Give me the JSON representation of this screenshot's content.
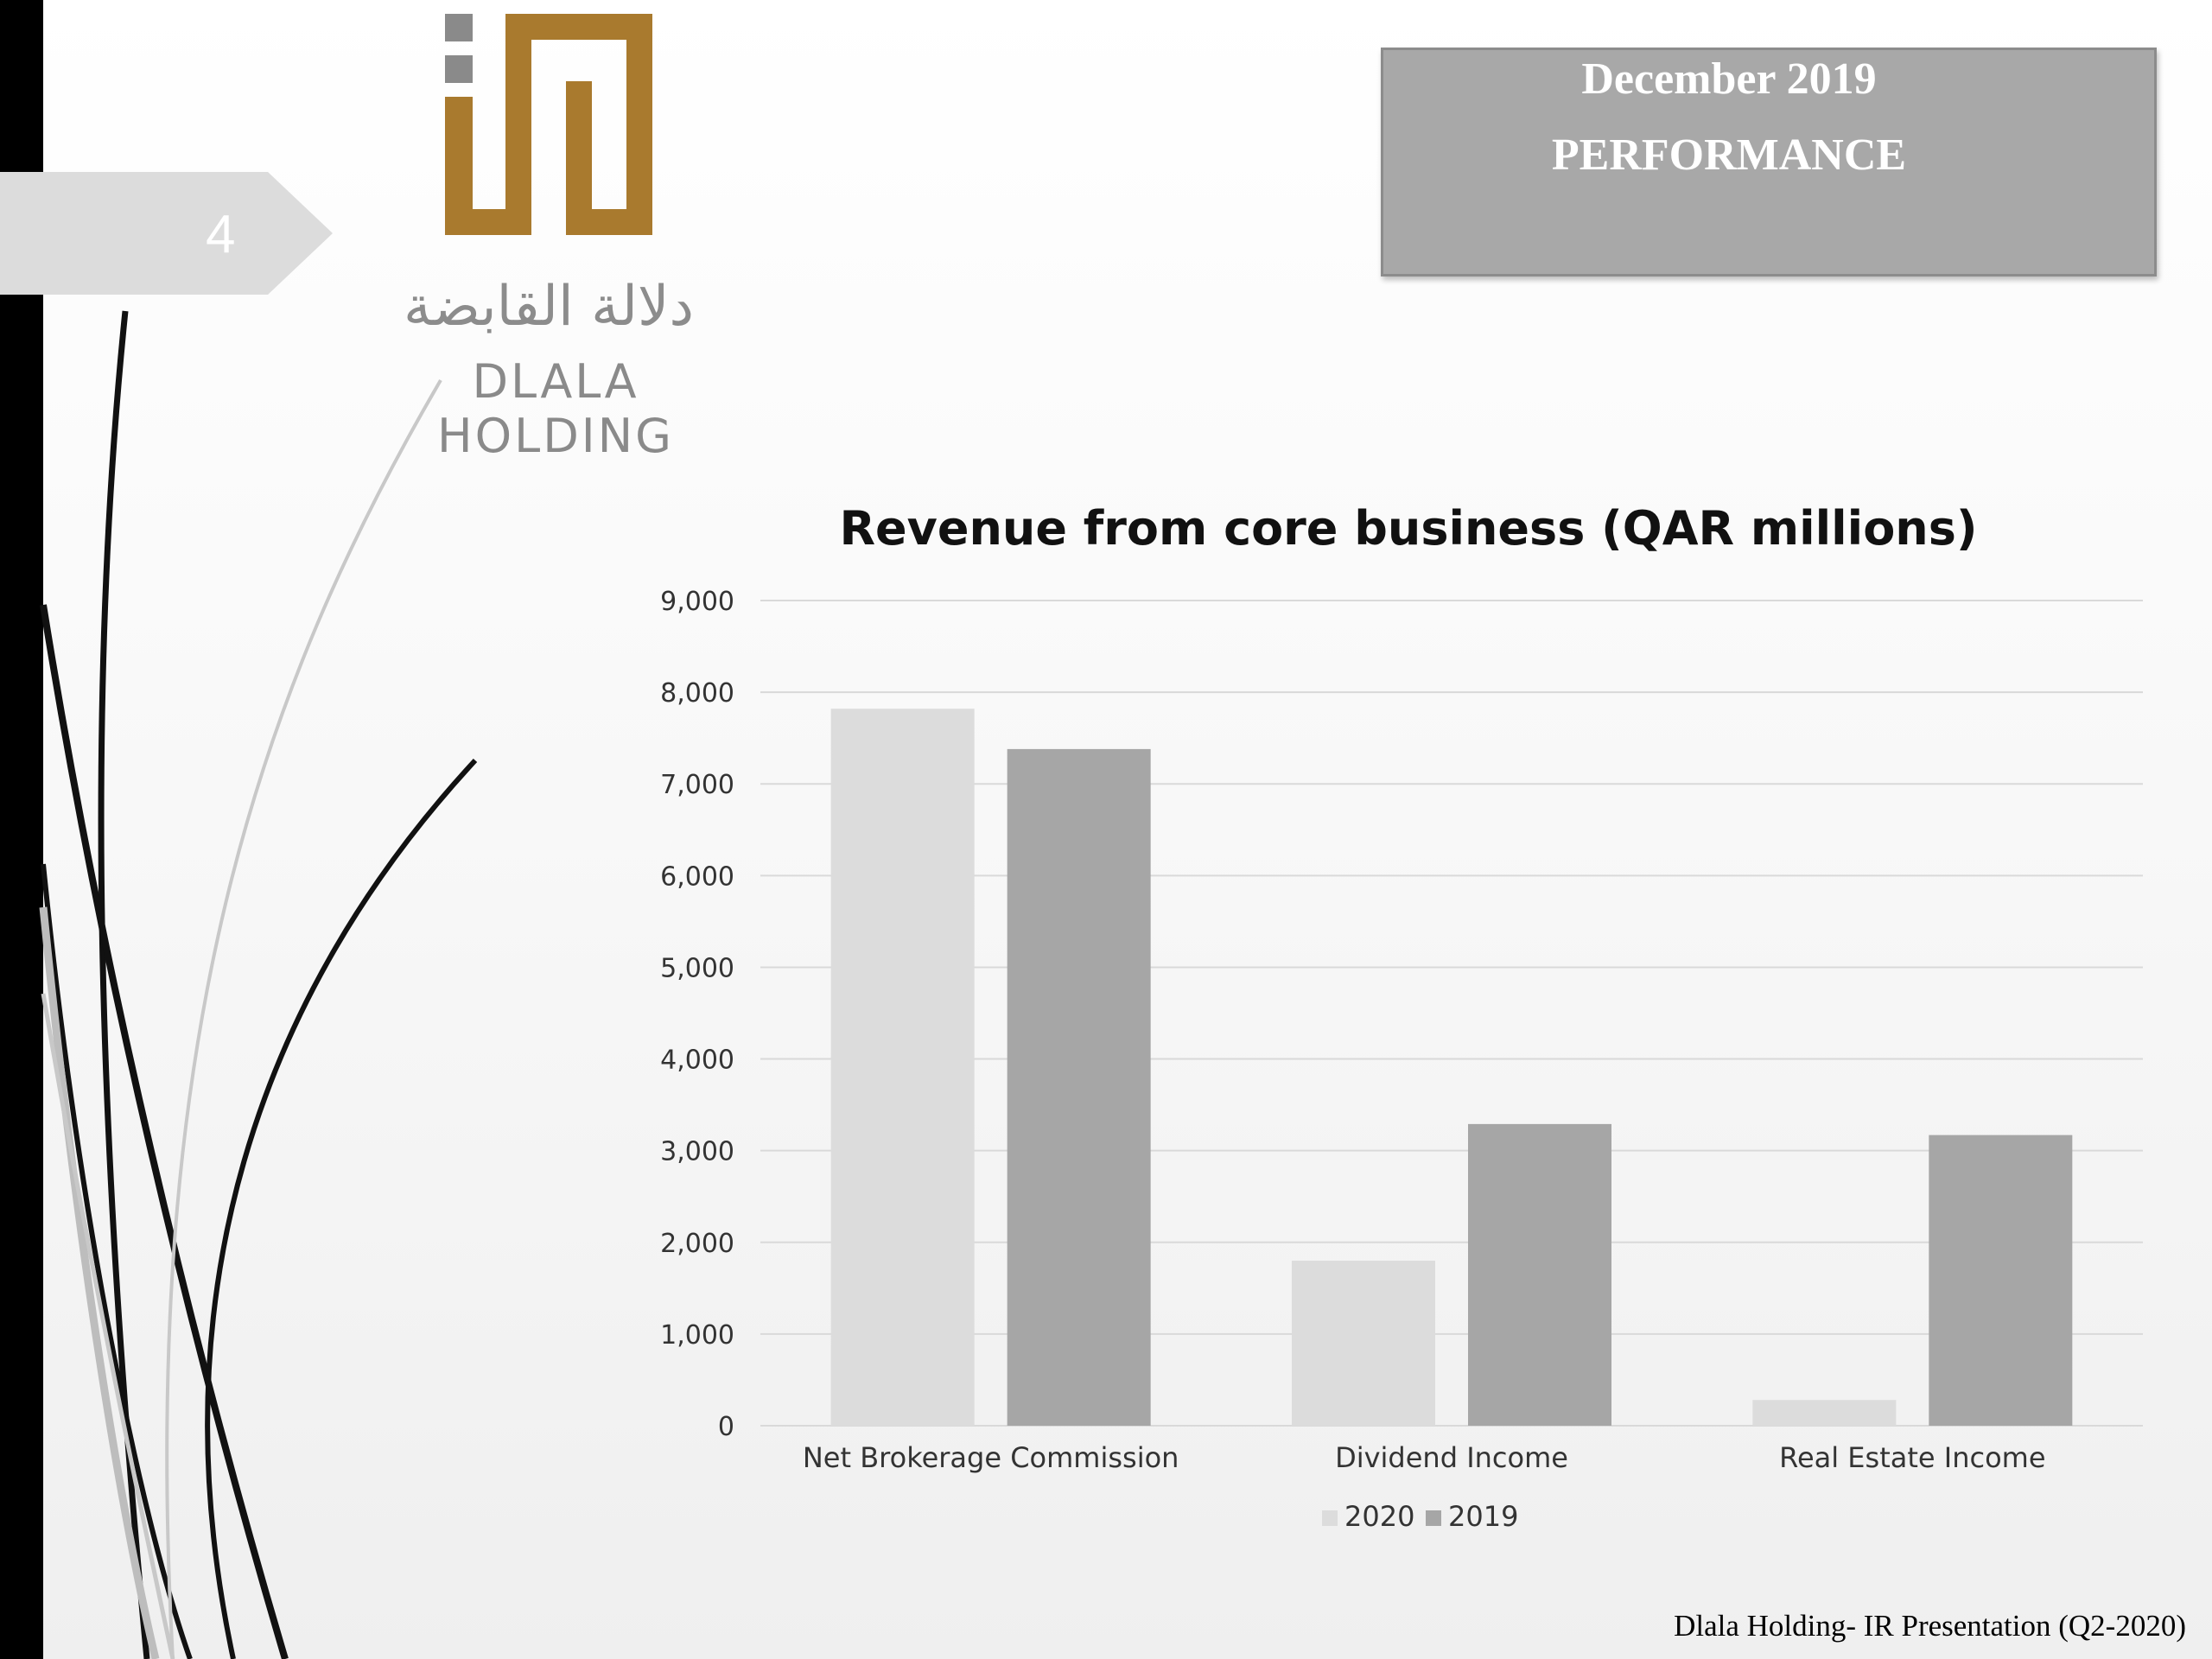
{
  "slide": {
    "page_number": "4",
    "footer": "Dlala Holding- IR Presentation (Q2-2020)"
  },
  "logo": {
    "arabic_name": "دلالة القابضة",
    "latin_name": "DLALA HOLDING",
    "colors": {
      "gold": "#a97a2e",
      "gray": "#8a8a8a"
    }
  },
  "header_box": {
    "line1": "December 2019",
    "line2": "PERFORMANCE"
  },
  "chart_data": {
    "type": "bar",
    "title": "Revenue from core business (QAR millions)",
    "categories": [
      "Net Brokerage Commission",
      "Dividend Income",
      "Real Estate Income"
    ],
    "series": [
      {
        "name": "2020",
        "values": [
          7820,
          1800,
          280
        ],
        "color": "#dcdcdc"
      },
      {
        "name": "2019",
        "values": [
          7380,
          3290,
          3170
        ],
        "color": "#a6a6a6"
      }
    ],
    "y_ticks": [
      "0",
      "1,000",
      "2,000",
      "3,000",
      "4,000",
      "5,000",
      "6,000",
      "7,000",
      "8,000",
      "9,000"
    ],
    "ylim": [
      0,
      9000
    ],
    "grid": true,
    "legend_position": "bottom"
  }
}
